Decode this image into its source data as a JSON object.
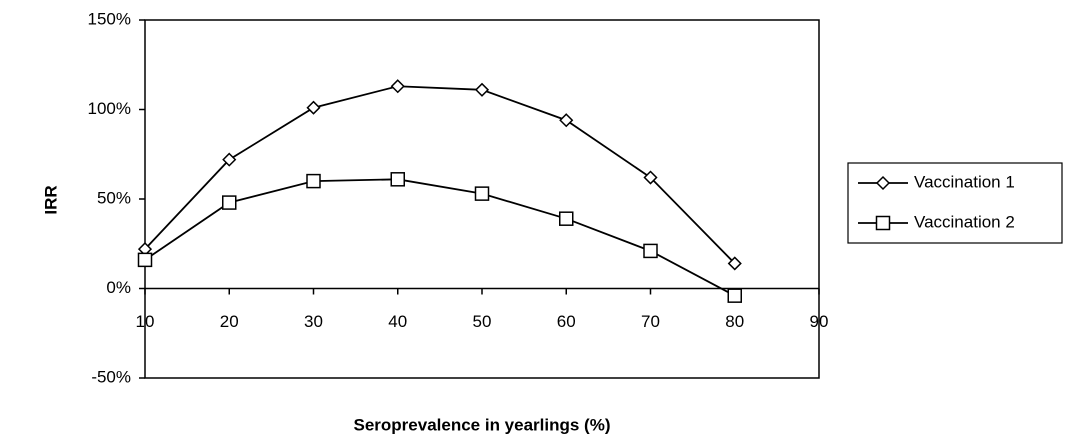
{
  "chart_data": {
    "type": "line",
    "x_label": "Seroprevalence in yearlings (%)",
    "y_label": "IRR",
    "x": [
      10,
      20,
      30,
      40,
      50,
      60,
      70,
      80
    ],
    "series": [
      {
        "name": "Vaccination 1",
        "color": "#000000",
        "marker": "diamond",
        "values": [
          22,
          72,
          101,
          113,
          111,
          94,
          62,
          14
        ]
      },
      {
        "name": "Vaccination 2",
        "color": "#000000",
        "marker": "square",
        "values": [
          16,
          48,
          60,
          61,
          53,
          39,
          21,
          -4
        ]
      }
    ],
    "xlim": [
      10,
      90
    ],
    "xticks": [
      10,
      20,
      30,
      40,
      50,
      60,
      70,
      80,
      90
    ],
    "ylim": [
      -50,
      150
    ],
    "yticks": [
      {
        "value": -50,
        "label": "-50%"
      },
      {
        "value": 0,
        "label": "0%"
      },
      {
        "value": 50,
        "label": "50%"
      },
      {
        "value": 100,
        "label": "100%"
      },
      {
        "value": 150,
        "label": "150%"
      }
    ],
    "grid": false,
    "legend": "right"
  }
}
